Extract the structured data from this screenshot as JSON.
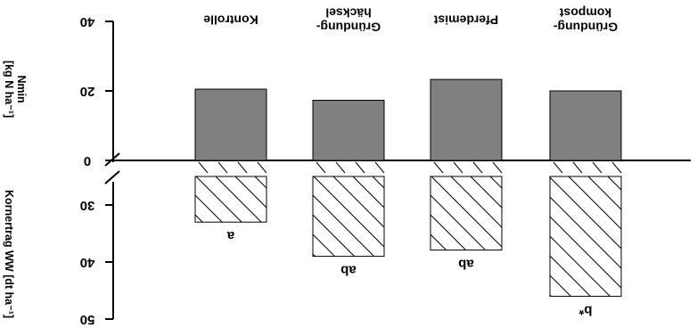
{
  "chart_data": [
    {
      "type": "bar",
      "panel": "upper",
      "ylabel_line1": "Nmin",
      "ylabel_line2": "[kg N ha⁻¹]",
      "ylim": [
        0,
        40
      ],
      "yticks": [
        0,
        20,
        40
      ],
      "tick_labels": [
        "0",
        "20",
        "40"
      ],
      "categories": [
        "Kontrolle",
        "Gründung-häcksel",
        "Pferdemist",
        "Gründung-kompost"
      ],
      "category_label_lines": [
        [
          "Kontrolle"
        ],
        [
          "Gründung-",
          "häcksel"
        ],
        [
          "Pferdemist"
        ],
        [
          "Gründung-",
          "kompost"
        ]
      ],
      "values": [
        20.5,
        17.3,
        23.3,
        20.0
      ],
      "fill": "#808080",
      "grid": false,
      "legend": "none"
    },
    {
      "type": "bar",
      "panel": "lower",
      "ylabel": "Kornertrag WW [dt ha⁻¹]",
      "ylim": [
        50,
        25
      ],
      "axis_inverted": true,
      "yticks": [
        30,
        40,
        50
      ],
      "tick_labels": [
        "30",
        "40",
        "50"
      ],
      "categories": [
        "Kontrolle",
        "Gründung-häcksel",
        "Pferdemist",
        "Gründung-kompost"
      ],
      "values": [
        33.0,
        39.0,
        37.9,
        46.0
      ],
      "significance_labels": [
        "a",
        "ab",
        "ab",
        "b*"
      ],
      "pattern": "diagonal-hatch",
      "grid": false,
      "legend": "none"
    }
  ],
  "colors": {
    "bar_fill": "#808080",
    "stroke": "#000000",
    "background": "#ffffff"
  }
}
